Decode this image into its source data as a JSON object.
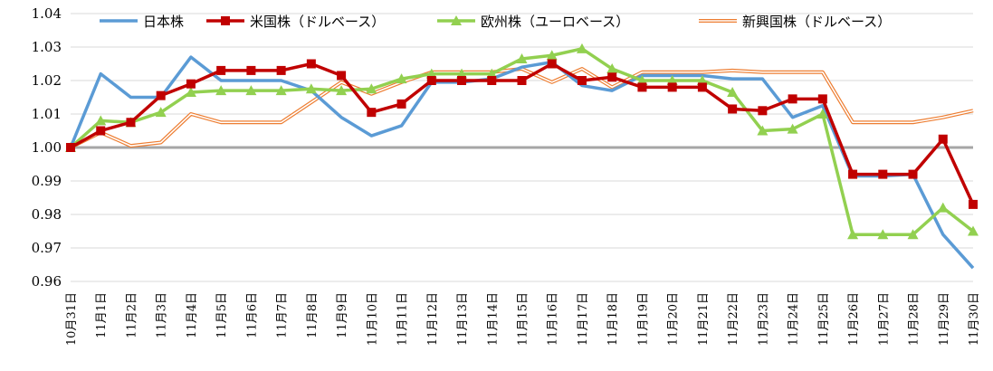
{
  "chart_data": {
    "type": "line",
    "title": "",
    "xlabel": "",
    "ylabel": "",
    "ylim": [
      0.96,
      1.04
    ],
    "yticks": [
      "0.96",
      "0.97",
      "0.98",
      "0.99",
      "1.00",
      "1.01",
      "1.02",
      "1.03",
      "1.04"
    ],
    "grid": true,
    "legend_position": "top",
    "categories": [
      "10月31日",
      "11月1日",
      "11月2日",
      "11月3日",
      "11月4日",
      "11月5日",
      "11月6日",
      "11月7日",
      "11月8日",
      "11月9日",
      "11月10日",
      "11月11日",
      "11月12日",
      "11月13日",
      "11月14日",
      "11月15日",
      "11月16日",
      "11月17日",
      "11月18日",
      "11月19日",
      "11月20日",
      "11月21日",
      "11月22日",
      "11月23日",
      "11月24日",
      "11月25日",
      "11月26日",
      "11月27日",
      "11月28日",
      "11月29日",
      "11月30日"
    ],
    "baseline": {
      "value": 1.0,
      "color": "#a6a6a6"
    },
    "series": [
      {
        "name": "日本株",
        "color": "#5b9bd5",
        "style": "line",
        "values": [
          1.0,
          1.022,
          1.015,
          1.015,
          1.027,
          1.02,
          1.02,
          1.02,
          1.017,
          1.009,
          1.0035,
          1.0065,
          1.0195,
          1.0195,
          1.0205,
          1.024,
          1.0255,
          1.0185,
          1.017,
          1.0215,
          1.0215,
          1.0215,
          1.0205,
          1.0205,
          1.009,
          1.0125,
          0.9915,
          0.9915,
          0.992,
          0.974,
          0.964
        ]
      },
      {
        "name": "米国株（ドルベース）",
        "color": "#c00000",
        "style": "square-marker",
        "values": [
          1.0,
          1.005,
          1.0075,
          1.0155,
          1.019,
          1.023,
          1.023,
          1.023,
          1.025,
          1.0215,
          1.0105,
          1.013,
          1.02,
          1.02,
          1.02,
          1.02,
          1.025,
          1.02,
          1.021,
          1.018,
          1.018,
          1.018,
          1.0115,
          1.011,
          1.0145,
          1.0145,
          0.992,
          0.992,
          0.992,
          1.0025,
          0.983
        ]
      },
      {
        "name": "欧州株（ユーロベース）",
        "color": "#92d050",
        "style": "triangle-marker",
        "values": [
          1.0,
          1.008,
          1.0075,
          1.0105,
          1.0165,
          1.017,
          1.017,
          1.017,
          1.0175,
          1.017,
          1.0175,
          1.0205,
          1.022,
          1.022,
          1.022,
          1.0265,
          1.0275,
          1.0295,
          1.0235,
          1.02,
          1.02,
          1.02,
          1.0165,
          1.005,
          1.0055,
          1.01,
          0.974,
          0.974,
          0.974,
          0.982,
          0.975
        ]
      },
      {
        "name": "新興国株（ドルベース）",
        "color": "#ed7d31",
        "style": "double-line",
        "values": [
          1.0,
          1.0045,
          1.0005,
          1.0015,
          1.01,
          1.0075,
          1.0075,
          1.0075,
          1.0135,
          1.0195,
          1.016,
          1.0195,
          1.0225,
          1.0225,
          1.0225,
          1.0235,
          1.0195,
          1.0235,
          1.018,
          1.0225,
          1.0225,
          1.0225,
          1.023,
          1.0225,
          1.0225,
          1.0225,
          1.0075,
          1.0075,
          1.0075,
          1.009,
          1.011
        ]
      }
    ]
  }
}
